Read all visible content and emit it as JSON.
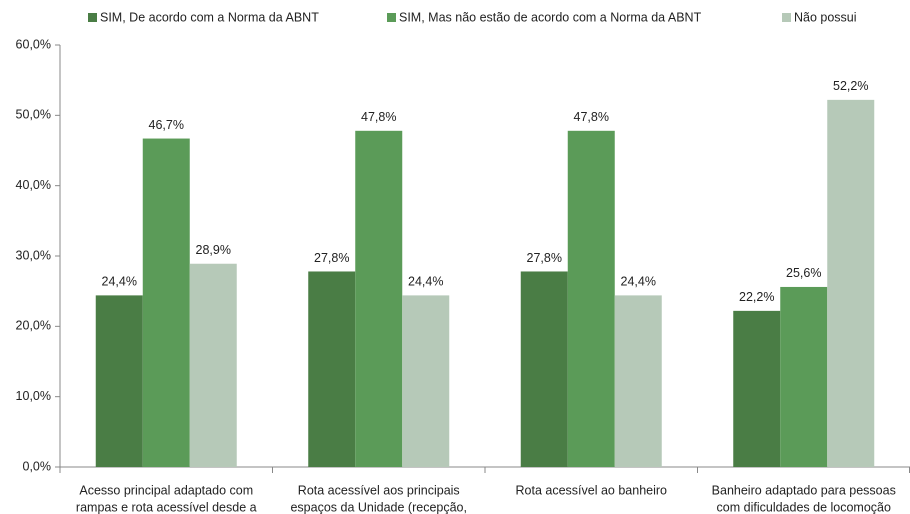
{
  "chart_data": {
    "type": "bar",
    "categories": [
      [
        "Acesso principal adaptado com",
        "rampas e rota acessível desde a"
      ],
      [
        "Rota acessível aos principais",
        "espaços da Unidade (recepção,"
      ],
      [
        "Rota acessível ao banheiro"
      ],
      [
        "Banheiro adaptado para pessoas",
        "com dificuldades de locomoção"
      ]
    ],
    "series": [
      {
        "name": "SIM, De acordo com a Norma da ABNT",
        "color": "#4a7d45",
        "values": [
          24.4,
          27.8,
          27.8,
          22.2
        ],
        "value_labels": [
          "24,4%",
          "27,8%",
          "27,8%",
          "22,2%"
        ]
      },
      {
        "name": "SIM, Mas não estão de acordo com a Norma da ABNT",
        "color": "#5b9b58",
        "values": [
          46.7,
          47.8,
          47.8,
          25.6
        ],
        "value_labels": [
          "46,7%",
          "47,8%",
          "47,8%",
          "25,6%"
        ]
      },
      {
        "name": "Não possui",
        "color": "#b6c9b8",
        "values": [
          28.9,
          24.4,
          24.4,
          52.2
        ],
        "value_labels": [
          "28,9%",
          "24,4%",
          "24,4%",
          "52,2%"
        ]
      }
    ],
    "ylim": [
      0,
      60
    ],
    "yticks": [
      {
        "value": 0,
        "label": "0,0%"
      },
      {
        "value": 10,
        "label": "10,0%"
      },
      {
        "value": 20,
        "label": "20,0%"
      },
      {
        "value": 30,
        "label": "30,0%"
      },
      {
        "value": 40,
        "label": "40,0%"
      },
      {
        "value": 50,
        "label": "50,0%"
      },
      {
        "value": 60,
        "label": "60,0%"
      }
    ],
    "legend": "top"
  }
}
